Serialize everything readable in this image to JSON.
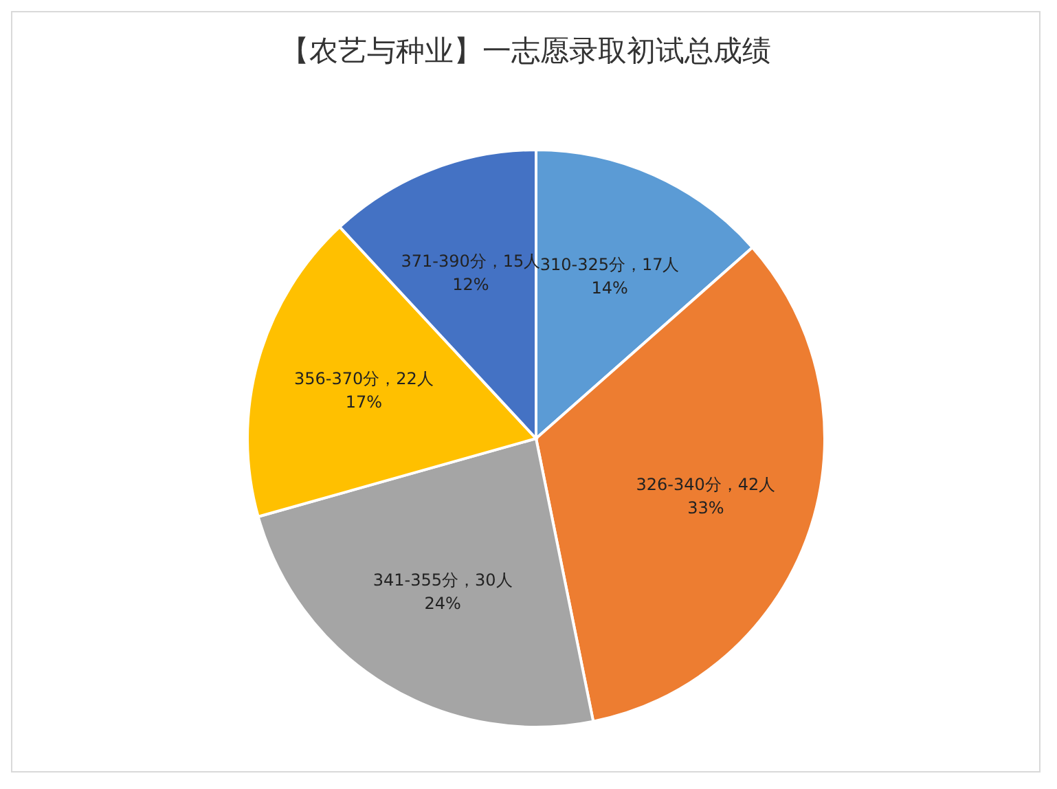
{
  "chart_data": {
    "type": "pie",
    "title": "【农艺与种业】一志愿录取初试总成绩",
    "categories": [
      "310-325分",
      "326-340分",
      "341-355分",
      "356-370分",
      "371-390分"
    ],
    "values": [
      17,
      42,
      30,
      22,
      15
    ],
    "colors": [
      "#5b9bd5",
      "#ed7d31",
      "#a5a5a5",
      "#ffc000",
      "#4472c4"
    ],
    "value_labels": [
      "，17人\n14%",
      "，42人\n33%",
      "，30人\n24%",
      "，22人\n17%",
      "，15人\n12%"
    ]
  }
}
